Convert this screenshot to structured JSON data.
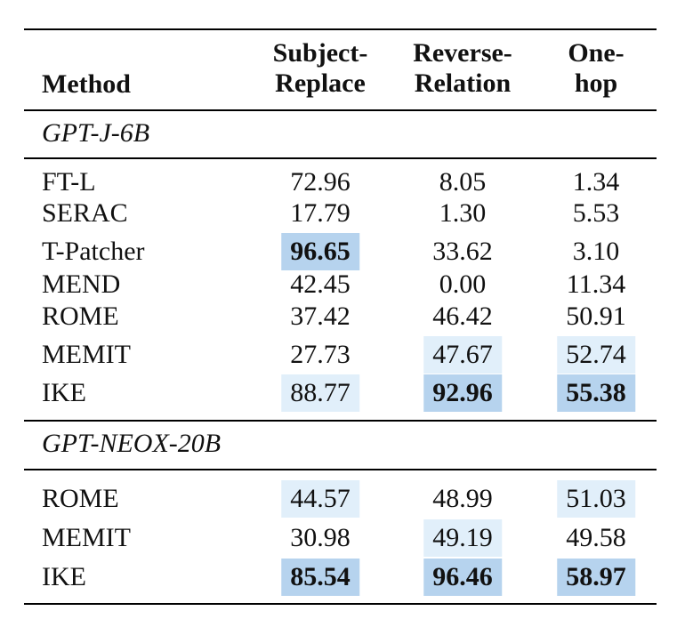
{
  "headers": {
    "method": "Method",
    "col1_line1": "Subject-",
    "col1_line2": "Replace",
    "col2_line1": "Reverse-",
    "col2_line2": "Relation",
    "col3_line1": "One-",
    "col3_line2": "hop"
  },
  "groups": [
    {
      "name": "GPT-J-6B",
      "rows": [
        {
          "method": "FT-L",
          "values": [
            "72.96",
            "8.05",
            "1.34"
          ]
        },
        {
          "method": "SERAC",
          "values": [
            "17.79",
            "1.30",
            "5.53"
          ]
        },
        {
          "method": "T-Patcher",
          "values": [
            "96.65",
            "33.62",
            "3.10"
          ]
        },
        {
          "method": "MEND",
          "values": [
            "42.45",
            "0.00",
            "11.34"
          ]
        },
        {
          "method": "ROME",
          "values": [
            "37.42",
            "46.42",
            "50.91"
          ]
        },
        {
          "method": "MEMIT",
          "values": [
            "27.73",
            "47.67",
            "52.74"
          ]
        },
        {
          "method": "IKE",
          "values": [
            "88.77",
            "92.96",
            "55.38"
          ]
        }
      ]
    },
    {
      "name": "GPT-NEOX-20B",
      "rows": [
        {
          "method": "ROME",
          "values": [
            "44.57",
            "48.99",
            "51.03"
          ]
        },
        {
          "method": "MEMIT",
          "values": [
            "30.98",
            "49.19",
            "49.58"
          ]
        },
        {
          "method": "IKE",
          "values": [
            "85.54",
            "96.46",
            "58.97"
          ]
        }
      ]
    }
  ],
  "highlight_colors": {
    "light": "#e1effa",
    "dark": "#b6d3ee"
  }
}
